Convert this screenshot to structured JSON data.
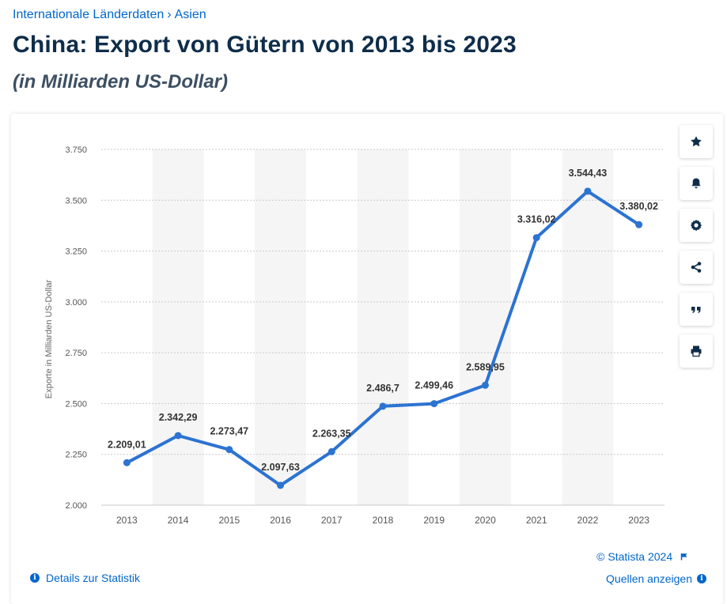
{
  "breadcrumb": {
    "level1": "Internationale Länderdaten",
    "separator": "›",
    "level2": "Asien"
  },
  "header": {
    "title": "China: Export von Gütern von 2013 bis 2023",
    "subtitle": "(in Milliarden US-Dollar)"
  },
  "colors": {
    "line": "#2c73d2",
    "accent": "#0066cc",
    "title": "#0e2d4a"
  },
  "side_tools": [
    "star-icon",
    "bell-icon",
    "gear-icon",
    "share-icon",
    "quote-icon",
    "print-icon"
  ],
  "footer": {
    "copyright": "© Statista 2024",
    "details_label": "Details zur Statistik",
    "sources_label": "Quellen anzeigen"
  },
  "chart_data": {
    "type": "line",
    "title": "China: Export von Gütern von 2013 bis 2023",
    "xlabel": "",
    "ylabel": "Exporte in Milliarden US-Dollar",
    "ylim": [
      2000,
      3750
    ],
    "yticks": [
      2000,
      2250,
      2500,
      2750,
      3000,
      3250,
      3500,
      3750
    ],
    "ytick_labels": [
      "2.000",
      "2.250",
      "2.500",
      "2.750",
      "3.000",
      "3.250",
      "3.500",
      "3.750"
    ],
    "categories": [
      "2013",
      "2014",
      "2015",
      "2016",
      "2017",
      "2018",
      "2019",
      "2020",
      "2021",
      "2022",
      "2023"
    ],
    "series": [
      {
        "name": "Exporte",
        "values": [
          2209.01,
          2342.29,
          2273.47,
          2097.63,
          2263.35,
          2486.7,
          2499.46,
          2589.95,
          3316.02,
          3544.43,
          3380.02
        ],
        "labels": [
          "2.209,01",
          "2.342,29",
          "2.273,47",
          "2.097,63",
          "2.263,35",
          "2.486,7",
          "2.499,46",
          "2.589,95",
          "3.316,02",
          "3.544,43",
          "3.380,02"
        ]
      }
    ],
    "grid": true,
    "legend": "none"
  }
}
